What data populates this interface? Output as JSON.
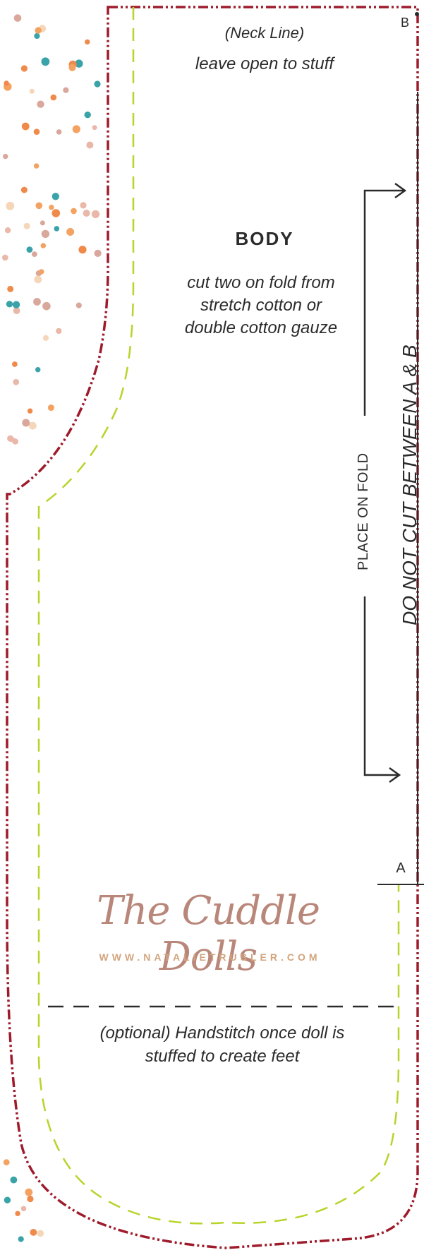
{
  "pattern": {
    "neck_line": "(Neck Line)",
    "neck_note": "leave open to stuff",
    "piece_name": "BODY",
    "cut_instruction": "cut two on fold from stretch cotton or double cotton gauze",
    "marker_b": "B",
    "marker_a": "A",
    "place_on_fold": "PLACE ON FOLD",
    "do_not_cut": "DO NOT CUT BETWEEN A & B",
    "feet_note": "(optional) Handstitch once doll is stuffed to create feet"
  },
  "branding": {
    "logo_text": "The Cuddle Dolls",
    "website": "WWW.NATALIETRUSLER.COM"
  },
  "colors": {
    "cut_line": "#9e1b2b",
    "seam_line": "#b7d42b",
    "text": "#2b2b2b",
    "logo": "#b9877a",
    "website": "#d2a47e",
    "dots": [
      "#f08a4b",
      "#3aa3a8",
      "#e9b8a8",
      "#f5d6b8",
      "#d9a79c",
      "#f4a261"
    ]
  }
}
